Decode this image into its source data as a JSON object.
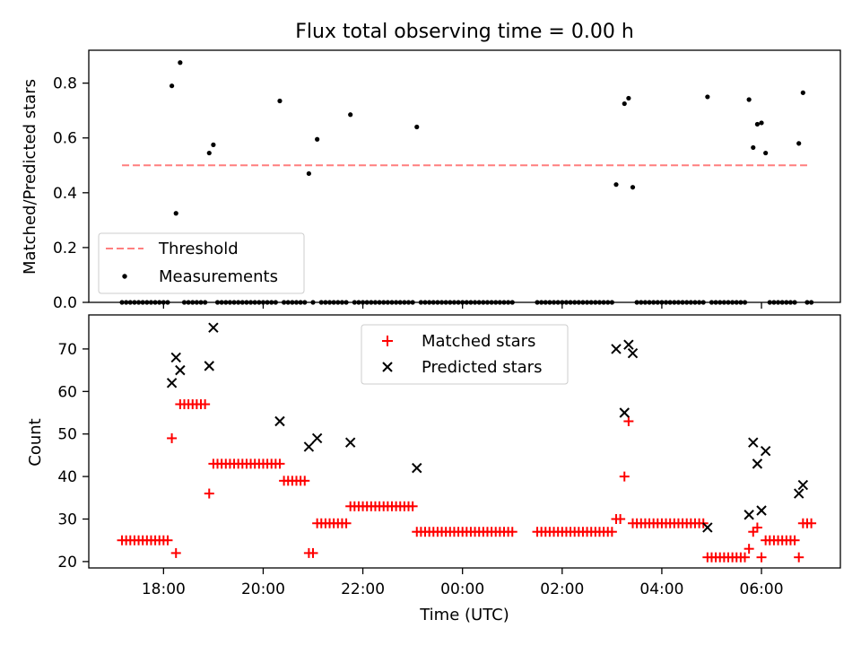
{
  "chart_data": [
    {
      "type": "scatter",
      "title": "Flux total observing time = 0.00 h",
      "xlabel": "",
      "ylabel": "Matched/Predicted stars",
      "ylim": [
        0,
        0.92
      ],
      "yticks": [
        0.0,
        0.2,
        0.4,
        0.6,
        0.8
      ],
      "ytick_labels": [
        "0.0",
        "0.2",
        "0.4",
        "0.6",
        "0.8"
      ],
      "legend": {
        "placement": "lower-left",
        "entries": [
          "Threshold",
          "Measurements"
        ]
      },
      "threshold": {
        "name": "Threshold",
        "y": 0.5,
        "x_range": [
          "17:10",
          "06:55"
        ],
        "color": "#ff7f7f"
      },
      "series": [
        {
          "name": "Measurements",
          "color": "#000000",
          "points": [
            {
              "x": "18:10",
              "y": 0.79
            },
            {
              "x": "18:15",
              "y": 0.325
            },
            {
              "x": "18:20",
              "y": 0.875
            },
            {
              "x": "18:55",
              "y": 0.545
            },
            {
              "x": "19:00",
              "y": 0.575
            },
            {
              "x": "20:20",
              "y": 0.735
            },
            {
              "x": "20:55",
              "y": 0.47
            },
            {
              "x": "21:05",
              "y": 0.595
            },
            {
              "x": "21:45",
              "y": 0.685
            },
            {
              "x": "23:05",
              "y": 0.64
            },
            {
              "x": "03:05",
              "y": 0.43
            },
            {
              "x": "03:15",
              "y": 0.725
            },
            {
              "x": "03:20",
              "y": 0.745
            },
            {
              "x": "03:25",
              "y": 0.42
            },
            {
              "x": "04:55",
              "y": 0.75
            },
            {
              "x": "05:45",
              "y": 0.74
            },
            {
              "x": "05:50",
              "y": 0.565
            },
            {
              "x": "05:55",
              "y": 0.65
            },
            {
              "x": "06:00",
              "y": 0.655
            },
            {
              "x": "06:05",
              "y": 0.545
            },
            {
              "x": "06:45",
              "y": 0.58
            },
            {
              "x": "06:50",
              "y": 0.765
            }
          ],
          "zero_segments": [
            [
              "17:10",
              "18:05"
            ],
            [
              "18:25",
              "18:50"
            ],
            [
              "19:05",
              "20:15"
            ],
            [
              "20:25",
              "20:50"
            ],
            [
              "21:00",
              "21:00"
            ],
            [
              "21:10",
              "21:40"
            ],
            [
              "21:50",
              "23:00"
            ],
            [
              "23:10",
              "01:00"
            ],
            [
              "01:30",
              "03:00"
            ],
            [
              "03:30",
              "04:50"
            ],
            [
              "05:00",
              "05:40"
            ],
            [
              "06:10",
              "06:40"
            ],
            [
              "06:55",
              "07:00"
            ]
          ]
        }
      ]
    },
    {
      "type": "scatter",
      "title": "",
      "xlabel": "Time (UTC)",
      "ylabel": "Count",
      "ylim": [
        18.5,
        78
      ],
      "yticks": [
        20,
        30,
        40,
        50,
        60,
        70
      ],
      "ytick_labels": [
        "20",
        "30",
        "40",
        "50",
        "60",
        "70"
      ],
      "x_range": [
        "16:30",
        "07:35"
      ],
      "xticks": [
        "18:00",
        "20:00",
        "22:00",
        "00:00",
        "02:00",
        "04:00",
        "06:00"
      ],
      "xtick_labels": [
        "18:00",
        "20:00",
        "22:00",
        "00:00",
        "02:00",
        "04:00",
        "06:00"
      ],
      "legend": {
        "placement": "upper-center",
        "entries": [
          "Matched stars",
          "Predicted stars"
        ]
      },
      "series": [
        {
          "name": "Matched stars",
          "marker": "plus",
          "color": "#ff0000",
          "runs": [
            {
              "from": "17:10",
              "to": "18:05",
              "y": 25
            },
            {
              "from": "18:25",
              "to": "18:50",
              "y": 57
            },
            {
              "from": "19:05",
              "to": "20:15",
              "y": 43
            },
            {
              "from": "20:25",
              "to": "20:50",
              "y": 39
            },
            {
              "from": "21:10",
              "to": "21:40",
              "y": 29
            },
            {
              "from": "21:50",
              "to": "23:00",
              "y": 33
            },
            {
              "from": "23:10",
              "to": "01:00",
              "y": 27
            },
            {
              "from": "01:30",
              "to": "03:00",
              "y": 27
            },
            {
              "from": "03:30",
              "to": "04:50",
              "y": 29
            },
            {
              "from": "05:00",
              "to": "05:40",
              "y": 21
            },
            {
              "from": "06:10",
              "to": "06:40",
              "y": 25
            },
            {
              "from": "06:55",
              "to": "07:00",
              "y": 29
            }
          ],
          "points": [
            {
              "x": "18:10",
              "y": 49
            },
            {
              "x": "18:15",
              "y": 22
            },
            {
              "x": "18:20",
              "y": 57
            },
            {
              "x": "18:55",
              "y": 36
            },
            {
              "x": "19:00",
              "y": 43
            },
            {
              "x": "20:20",
              "y": 43
            },
            {
              "x": "20:55",
              "y": 22
            },
            {
              "x": "21:00",
              "y": 22
            },
            {
              "x": "21:05",
              "y": 29
            },
            {
              "x": "21:45",
              "y": 33
            },
            {
              "x": "23:05",
              "y": 27
            },
            {
              "x": "03:05",
              "y": 30
            },
            {
              "x": "03:10",
              "y": 30
            },
            {
              "x": "03:15",
              "y": 40
            },
            {
              "x": "03:20",
              "y": 53
            },
            {
              "x": "03:25",
              "y": 29
            },
            {
              "x": "04:55",
              "y": 21
            },
            {
              "x": "05:45",
              "y": 23
            },
            {
              "x": "05:50",
              "y": 27
            },
            {
              "x": "05:55",
              "y": 28
            },
            {
              "x": "06:00",
              "y": 21
            },
            {
              "x": "06:05",
              "y": 25
            },
            {
              "x": "06:45",
              "y": 21
            },
            {
              "x": "06:50",
              "y": 29
            }
          ]
        },
        {
          "name": "Predicted stars",
          "marker": "x",
          "color": "#000000",
          "points": [
            {
              "x": "18:10",
              "y": 62
            },
            {
              "x": "18:15",
              "y": 68
            },
            {
              "x": "18:20",
              "y": 65
            },
            {
              "x": "18:55",
              "y": 66
            },
            {
              "x": "19:00",
              "y": 75
            },
            {
              "x": "20:20",
              "y": 53
            },
            {
              "x": "20:55",
              "y": 47
            },
            {
              "x": "21:05",
              "y": 49
            },
            {
              "x": "21:45",
              "y": 48
            },
            {
              "x": "23:05",
              "y": 42
            },
            {
              "x": "03:05",
              "y": 70
            },
            {
              "x": "03:15",
              "y": 55
            },
            {
              "x": "03:20",
              "y": 71
            },
            {
              "x": "03:25",
              "y": 69
            },
            {
              "x": "04:55",
              "y": 28
            },
            {
              "x": "05:45",
              "y": 31
            },
            {
              "x": "05:50",
              "y": 48
            },
            {
              "x": "05:55",
              "y": 43
            },
            {
              "x": "06:00",
              "y": 32
            },
            {
              "x": "06:05",
              "y": 46
            },
            {
              "x": "06:45",
              "y": 36
            },
            {
              "x": "06:50",
              "y": 38
            }
          ]
        }
      ]
    }
  ]
}
